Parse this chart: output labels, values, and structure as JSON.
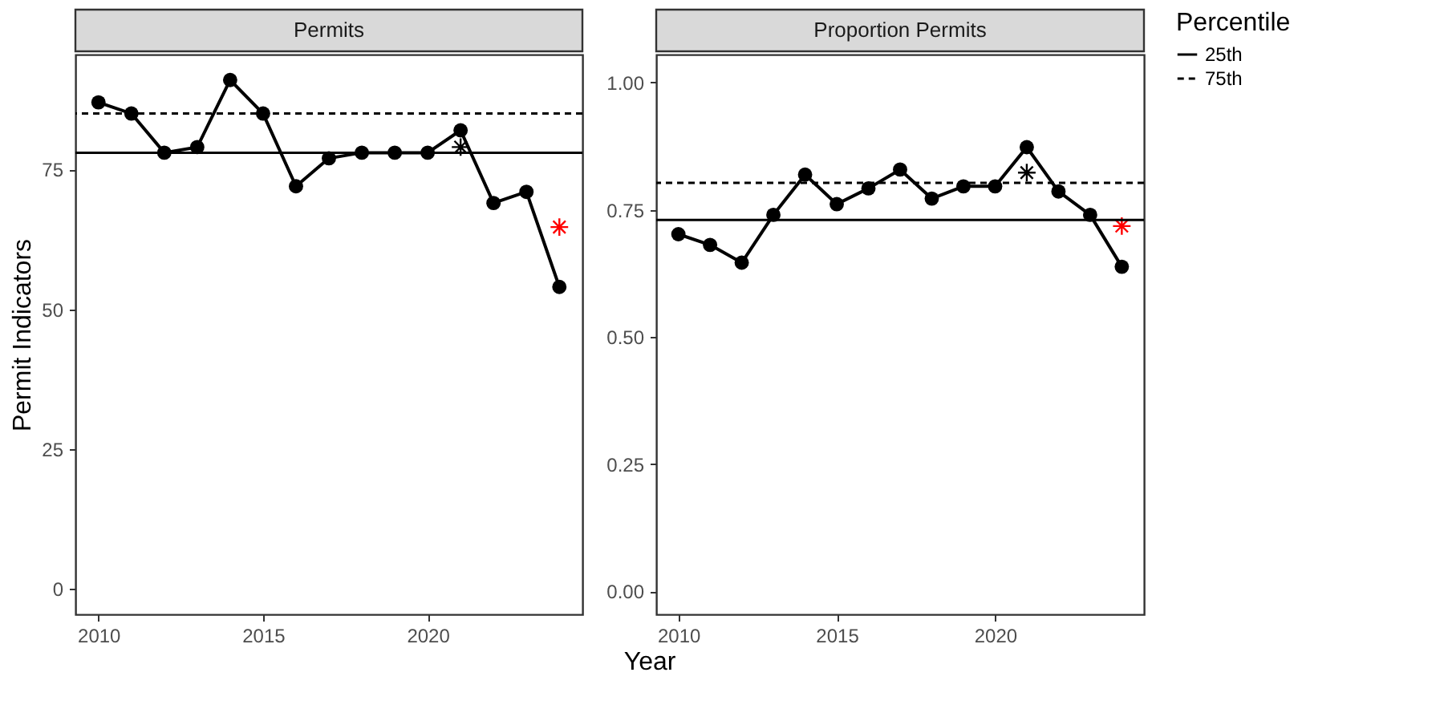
{
  "chart_data": [
    {
      "type": "line",
      "title": "Permits",
      "ylabel": "Permit Indicators",
      "xlabel": "Year",
      "x": [
        2010,
        2011,
        2012,
        2013,
        2014,
        2015,
        2016,
        2017,
        2018,
        2019,
        2020,
        2021,
        2022,
        2023,
        2024
      ],
      "xlim": [
        2009.3,
        2024.7
      ],
      "xticks": [
        2010,
        2015,
        2020
      ],
      "ylim": [
        -4.55,
        95.55
      ],
      "yticks": [
        0,
        25,
        50,
        75
      ],
      "grid": false,
      "marker": "circle",
      "series": [
        {
          "color": "#000000",
          "values": [
            87,
            85,
            78,
            79,
            91,
            85,
            72,
            77,
            78,
            78,
            78,
            82,
            69,
            71,
            54
          ]
        },
        {
          "type": "scatter",
          "marker": "cross",
          "color": "#000000",
          "values": [
            null,
            null,
            null,
            null,
            null,
            null,
            null,
            null,
            null,
            null,
            null,
            79,
            null,
            null,
            null
          ]
        },
        {
          "type": "scatter",
          "marker": "cross",
          "color": "#ff0000",
          "values": [
            null,
            null,
            null,
            null,
            null,
            null,
            null,
            null,
            null,
            null,
            null,
            null,
            null,
            null,
            64.7
          ]
        }
      ],
      "ref_lines": [
        {
          "axis": "y",
          "value": 78,
          "line_style": "solid",
          "color": "#000000"
        },
        {
          "axis": "y",
          "value": 85,
          "line_style": "dashed",
          "color": "#000000"
        }
      ]
    },
    {
      "type": "line",
      "title": "Proportion Permits",
      "x": [
        2010,
        2011,
        2012,
        2013,
        2014,
        2015,
        2016,
        2017,
        2018,
        2019,
        2020,
        2021,
        2022,
        2023,
        2024
      ],
      "xlim": [
        2009.3,
        2024.7
      ],
      "xticks": [
        2010,
        2015,
        2020
      ],
      "ylim": [
        -0.045,
        1.055
      ],
      "yticks": [
        {
          "value": 0,
          "label": "0.00"
        },
        {
          "value": 0.25,
          "label": "0.25"
        },
        {
          "value": 0.5,
          "label": "0.50"
        },
        {
          "value": 0.75,
          "label": "0.75"
        },
        {
          "value": 1,
          "label": "1.00"
        }
      ],
      "grid": false,
      "marker": "circle",
      "legend": "right",
      "legend_title": "Percentile",
      "series": [
        {
          "color": "#000000",
          "values": [
            0.702,
            0.681,
            0.646,
            0.74,
            0.819,
            0.761,
            0.792,
            0.829,
            0.772,
            0.796,
            0.796,
            0.873,
            0.786,
            0.74,
            0.638
          ]
        },
        {
          "type": "scatter",
          "marker": "cross",
          "color": "#000000",
          "values": [
            null,
            null,
            null,
            null,
            null,
            null,
            null,
            null,
            null,
            null,
            null,
            0.823,
            null,
            null,
            null
          ]
        },
        {
          "type": "scatter",
          "marker": "cross",
          "color": "#ff0000",
          "values": [
            null,
            null,
            null,
            null,
            null,
            null,
            null,
            null,
            null,
            null,
            null,
            null,
            null,
            null,
            0.718
          ]
        }
      ],
      "ref_lines": [
        {
          "axis": "y",
          "value": 0.73,
          "label": "25th",
          "line_style": "solid",
          "color": "#000000"
        },
        {
          "axis": "y",
          "value": 0.803,
          "label": "75th",
          "line_style": "dashed",
          "color": "#000000"
        }
      ]
    }
  ]
}
